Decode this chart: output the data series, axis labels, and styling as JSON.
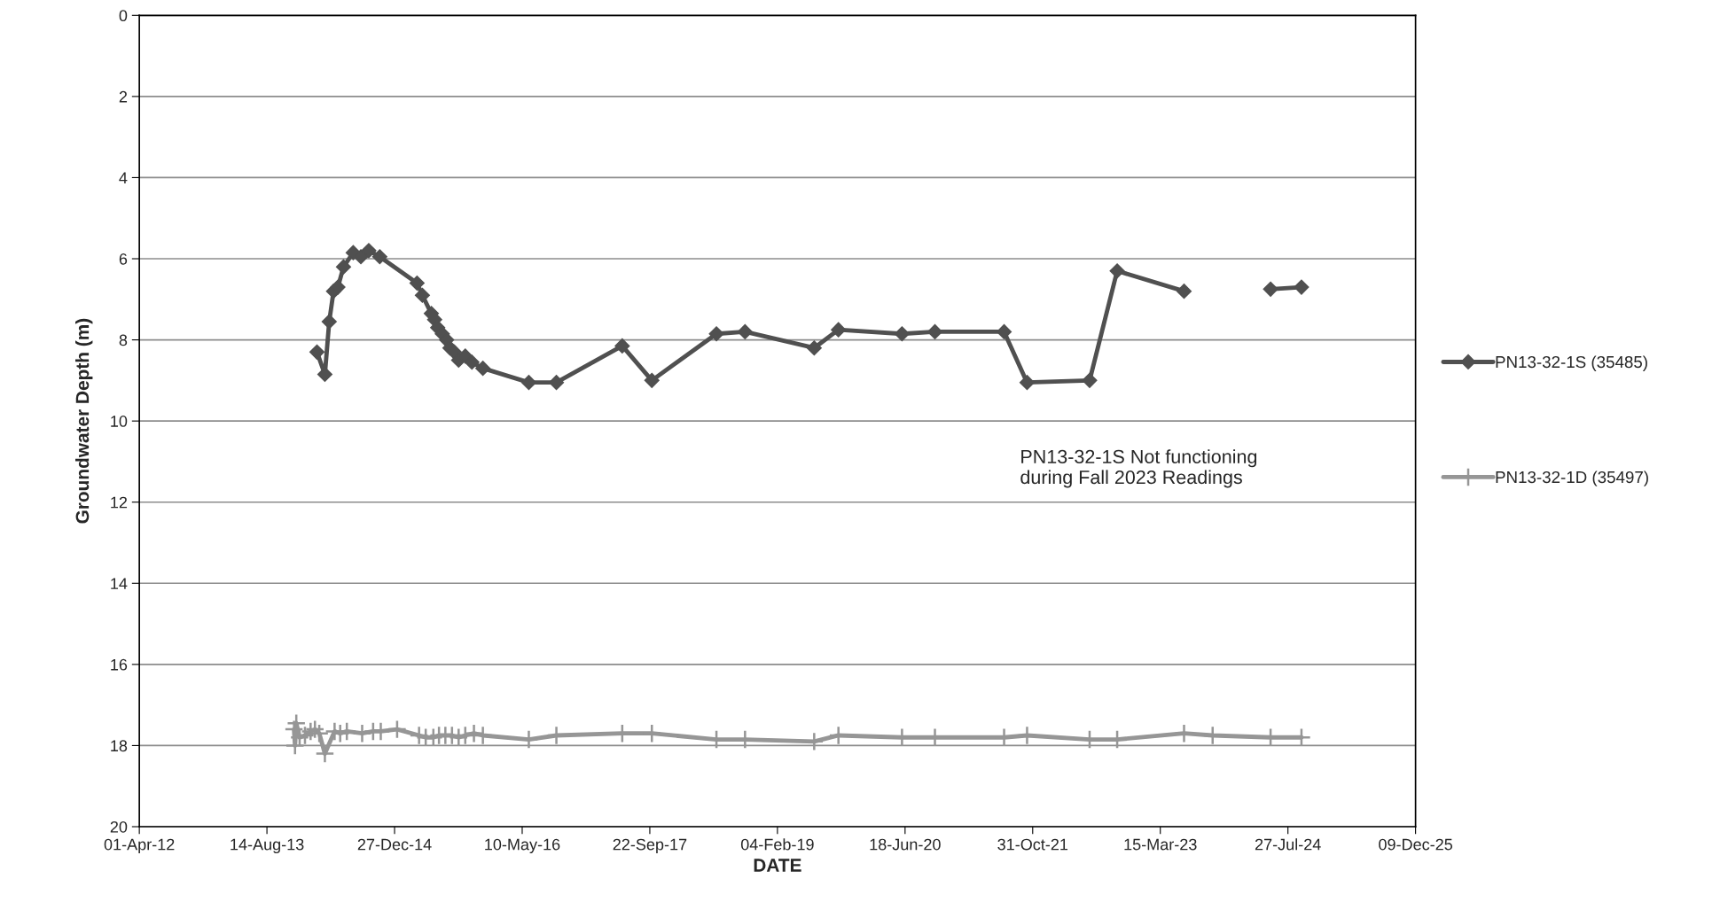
{
  "chart_data": {
    "type": "line",
    "xlabel": "DATE",
    "ylabel": "Groundwater Depth (m)",
    "xlim": [
      "2012-04-01",
      "2025-12-09"
    ],
    "xticks": [
      {
        "value": "2012-04-01",
        "label": "01-Apr-12"
      },
      {
        "value": "2013-08-14",
        "label": "14-Aug-13"
      },
      {
        "value": "2014-12-27",
        "label": "27-Dec-14"
      },
      {
        "value": "2016-05-10",
        "label": "10-May-16"
      },
      {
        "value": "2017-09-22",
        "label": "22-Sep-17"
      },
      {
        "value": "2019-02-04",
        "label": "04-Feb-19"
      },
      {
        "value": "2020-06-18",
        "label": "18-Jun-20"
      },
      {
        "value": "2021-10-31",
        "label": "31-Oct-21"
      },
      {
        "value": "2023-03-15",
        "label": "15-Mar-23"
      },
      {
        "value": "2024-07-27",
        "label": "27-Jul-24"
      },
      {
        "value": "2025-12-09",
        "label": "09-Dec-25"
      }
    ],
    "ylim": [
      20,
      0
    ],
    "yticks": [
      0,
      2,
      4,
      6,
      8,
      10,
      12,
      14,
      16,
      18,
      20
    ],
    "grid": "y",
    "legend": "right",
    "annotations": [
      "PN13-32-1S Not functioning\nduring Fall 2023 Readings"
    ],
    "series": [
      {
        "name": "PN13-32-1S (35485)",
        "color": "#505050",
        "marker": "diamond",
        "x": [
          "2014-02-26",
          "2014-03-29",
          "2014-04-15",
          "2014-05-02",
          "2014-05-19",
          "2014-06-10",
          "2014-07-18",
          "2014-08-17",
          "2014-09-17",
          "2014-10-30",
          "2015-03-25",
          "2015-04-15",
          "2015-05-20",
          "2015-06-02",
          "2015-06-14",
          "2015-07-02",
          "2015-07-19",
          "2015-08-01",
          "2015-08-18",
          "2015-09-04",
          "2015-09-30",
          "2015-10-26",
          "2015-12-08",
          "2016-06-05",
          "2016-09-21",
          "2017-06-06",
          "2017-09-30",
          "2018-06-10",
          "2018-09-30",
          "2019-06-28",
          "2019-10-01",
          "2020-06-06",
          "2020-10-13",
          "2021-07-11",
          "2021-10-09",
          "2022-06-11",
          "2022-09-27",
          "2023-06-16",
          "2023-10-06",
          "2024-05-20",
          "2024-09-18"
        ],
        "values": [
          8.3,
          8.85,
          7.55,
          6.8,
          6.7,
          6.2,
          5.85,
          5.95,
          5.8,
          5.95,
          6.6,
          6.9,
          7.35,
          7.5,
          7.7,
          7.85,
          8.0,
          8.2,
          8.3,
          8.5,
          8.4,
          8.55,
          8.7,
          9.05,
          9.05,
          8.15,
          9.0,
          7.85,
          7.8,
          8.2,
          7.75,
          7.85,
          7.8,
          7.8,
          9.05,
          9.0,
          6.3,
          6.8,
          null,
          6.75,
          6.7
        ]
      },
      {
        "name": "PN13-32-1D (35497)",
        "color": "#969696",
        "marker": "cross",
        "x": [
          "2013-11-28",
          "2013-12-02",
          "2013-12-07",
          "2013-12-20",
          "2014-01-10",
          "2014-02-01",
          "2014-02-18",
          "2014-03-07",
          "2014-03-29",
          "2014-05-06",
          "2014-05-28",
          "2014-06-23",
          "2014-08-22",
          "2014-10-04",
          "2014-11-03",
          "2015-01-06",
          "2015-04-02",
          "2015-04-28",
          "2015-05-28",
          "2015-06-19",
          "2015-07-14",
          "2015-08-09",
          "2015-09-04",
          "2015-09-30",
          "2015-11-03",
          "2015-12-08",
          "2016-06-05",
          "2016-09-21",
          "2017-06-06",
          "2017-09-30",
          "2018-06-10",
          "2018-09-30",
          "2019-06-28",
          "2019-10-01",
          "2020-06-06",
          "2020-10-13",
          "2021-07-11",
          "2021-10-09",
          "2022-06-11",
          "2022-09-27",
          "2023-06-16",
          "2023-10-06",
          "2024-05-20",
          "2024-09-18"
        ],
        "values": [
          17.6,
          18.0,
          17.45,
          17.8,
          17.75,
          17.65,
          17.6,
          17.7,
          18.2,
          17.65,
          17.7,
          17.65,
          17.7,
          17.65,
          17.65,
          17.6,
          17.75,
          17.8,
          17.8,
          17.75,
          17.75,
          17.75,
          17.8,
          17.75,
          17.7,
          17.75,
          17.85,
          17.75,
          17.7,
          17.7,
          17.85,
          17.85,
          17.9,
          17.75,
          17.8,
          17.8,
          17.8,
          17.75,
          17.85,
          17.85,
          17.7,
          17.75,
          17.8,
          17.8
        ]
      }
    ]
  }
}
